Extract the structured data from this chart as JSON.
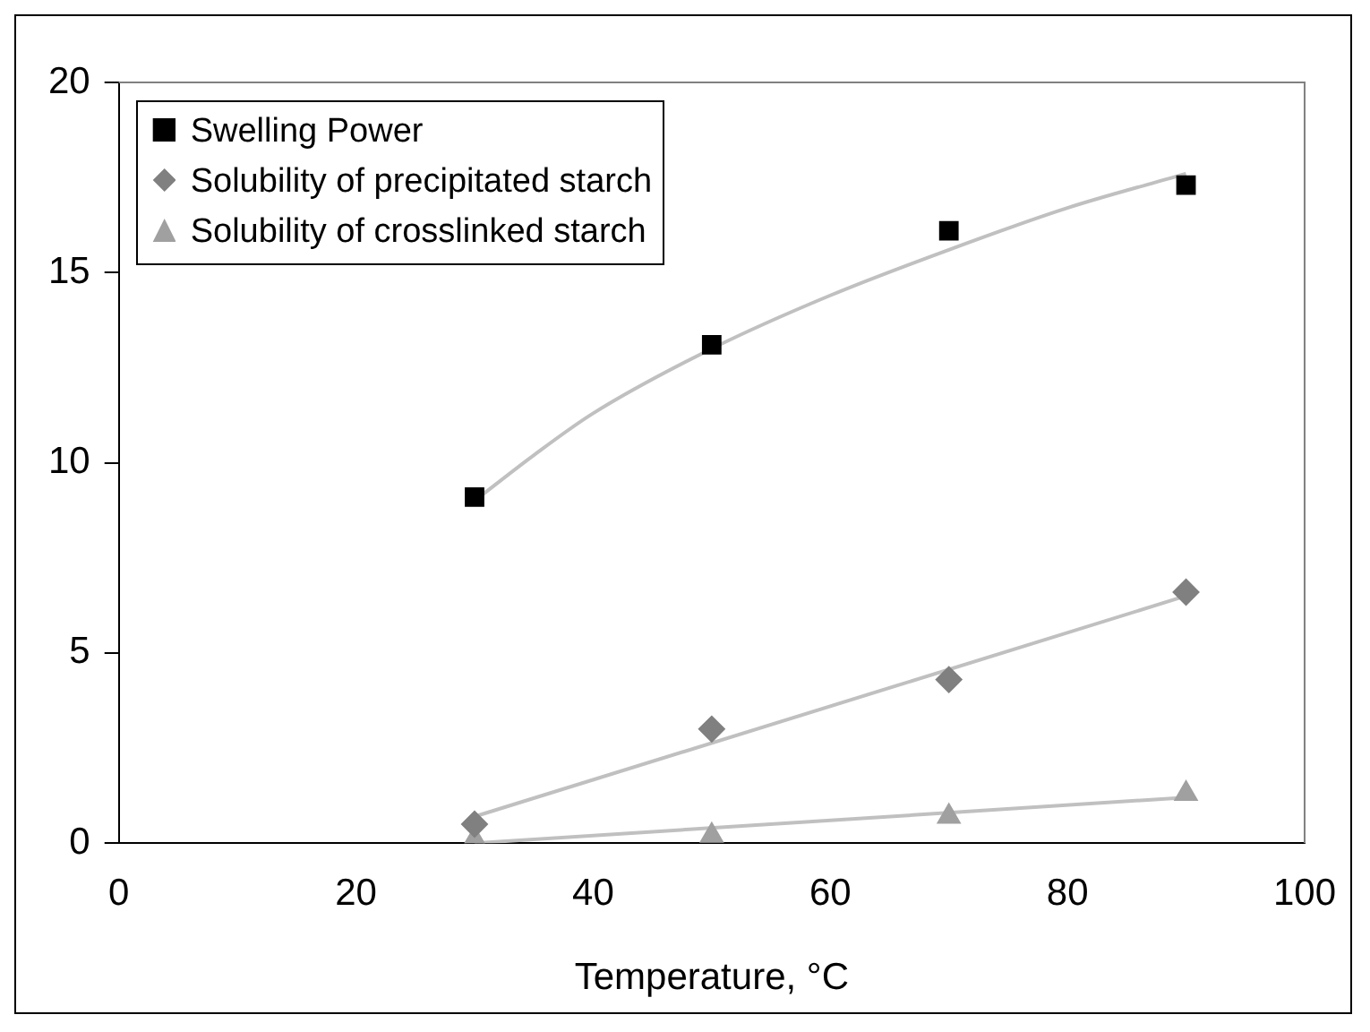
{
  "chart_data": {
    "type": "scatter",
    "xlabel": "Temperature, °C",
    "xlim": [
      0,
      100
    ],
    "xticks": [
      0,
      20,
      40,
      60,
      80,
      100
    ],
    "ylim": [
      0,
      20
    ],
    "yticks": [
      0,
      5,
      10,
      15,
      20
    ],
    "grid": false,
    "legend": "top left",
    "series": [
      {
        "name": "Swelling Power",
        "color": "#000000",
        "marker": "square",
        "x": [
          30,
          50,
          70,
          90
        ],
        "values": [
          9.1,
          13.1,
          16.1,
          17.3
        ]
      },
      {
        "name": "Solubility of precipitated starch",
        "color": "#808080",
        "marker": "diamond",
        "x": [
          30,
          50,
          70,
          90
        ],
        "values": [
          0.5,
          3.0,
          4.3,
          6.6
        ]
      },
      {
        "name": "Solubility of crosslinked starch",
        "color": "#a0a0a0",
        "marker": "triangle",
        "x": [
          30,
          50,
          70,
          90
        ],
        "values": [
          0.1,
          0.2,
          0.7,
          1.3
        ]
      },
      {
        "type": "line",
        "color": "#c0c0c0",
        "marker": "none",
        "x": [
          30,
          35,
          40,
          50,
          60,
          70,
          80,
          90
        ],
        "values": [
          9.0,
          10.2,
          11.3,
          13.0,
          14.4,
          15.6,
          16.7,
          17.6
        ]
      },
      {
        "type": "line",
        "color": "#c0c0c0",
        "marker": "none",
        "x": [
          30,
          90
        ],
        "values": [
          0.7,
          6.5
        ]
      },
      {
        "type": "line",
        "color": "#c0c0c0",
        "marker": "none",
        "x": [
          30,
          90
        ],
        "values": [
          0,
          1.2
        ]
      }
    ]
  }
}
